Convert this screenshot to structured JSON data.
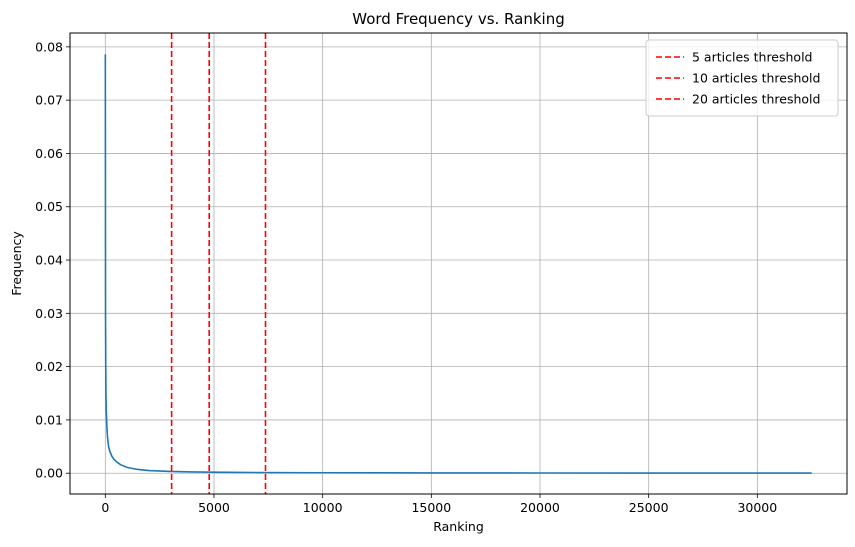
{
  "chart_data": {
    "type": "line",
    "title": "Word Frequency vs. Ranking",
    "xlabel": "Ranking",
    "ylabel": "Frequency",
    "xlim": [
      -1625,
      34125
    ],
    "ylim": [
      -0.0039,
      0.0826
    ],
    "xticks": [
      0,
      5000,
      10000,
      15000,
      20000,
      25000,
      30000
    ],
    "yticks": [
      0.0,
      0.01,
      0.02,
      0.03,
      0.04,
      0.05,
      0.06,
      0.07,
      0.08
    ],
    "xtick_labels": [
      "0",
      "5000",
      "10000",
      "15000",
      "20000",
      "25000",
      "30000"
    ],
    "ytick_labels": [
      "0.00",
      "0.01",
      "0.02",
      "0.03",
      "0.04",
      "0.05",
      "0.06",
      "0.07",
      "0.08"
    ],
    "grid": true,
    "legend_position": "top-right",
    "series": [
      {
        "color": "#1f77b4",
        "x": [
          1,
          10,
          20,
          30,
          50,
          80,
          100,
          150,
          200,
          300,
          400,
          500,
          700,
          1000,
          1500,
          2000,
          3000,
          4000,
          5000,
          7000,
          10000,
          15000,
          20000,
          25000,
          30000,
          32500
        ],
        "y": [
          0.0786,
          0.03,
          0.02,
          0.0145,
          0.011,
          0.008,
          0.0068,
          0.005,
          0.0042,
          0.0032,
          0.0026,
          0.0022,
          0.0016,
          0.0011,
          0.0007,
          0.0005,
          0.00033,
          0.00024,
          0.00019,
          0.00013,
          9e-05,
          6e-05,
          4e-05,
          3e-05,
          2e-05,
          2e-05
        ]
      }
    ],
    "thresholds": [
      {
        "name": "5 articles threshold",
        "x": 3050,
        "color": "#ff0000"
      },
      {
        "name": "10 articles threshold",
        "x": 4780,
        "color": "#ff0000"
      },
      {
        "name": "20 articles threshold",
        "x": 7370,
        "color": "#ff0000"
      }
    ]
  }
}
